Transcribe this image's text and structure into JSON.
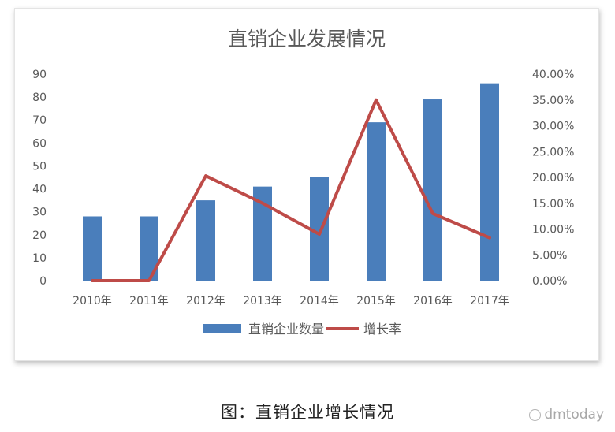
{
  "chart_data": {
    "type": "bar",
    "title": "直销企业发展情况",
    "categories": [
      "2010年",
      "2011年",
      "2012年",
      "2013年",
      "2014年",
      "2015年",
      "2016年",
      "2017年"
    ],
    "series": [
      {
        "name": "直销企业数量",
        "type": "bar",
        "axis": "left",
        "color": "#4a7ebb",
        "values": [
          28,
          28,
          35,
          41,
          45,
          69,
          79,
          86
        ]
      },
      {
        "name": "增长率",
        "type": "line",
        "axis": "right",
        "color": "#be4b48",
        "values": [
          0.0,
          0.0,
          20.3,
          15.0,
          9.0,
          35.0,
          13.0,
          8.3
        ]
      }
    ],
    "y_left": {
      "min": 0,
      "max": 90,
      "ticks": [
        "0",
        "10",
        "20",
        "30",
        "40",
        "50",
        "60",
        "70",
        "80",
        "90"
      ]
    },
    "y_right": {
      "min": 0,
      "max": 40,
      "ticks": [
        "0.00%",
        "5.00%",
        "10.00%",
        "15.00%",
        "20.00%",
        "25.00%",
        "30.00%",
        "35.00%",
        "40.00%"
      ]
    },
    "legend_position": "bottom",
    "grid": false
  },
  "caption": "图：直销企业增长情况",
  "watermark": "dmtoday",
  "colors": {
    "bar": "#4a7ebb",
    "line": "#be4b48",
    "axis_text": "#595959"
  }
}
